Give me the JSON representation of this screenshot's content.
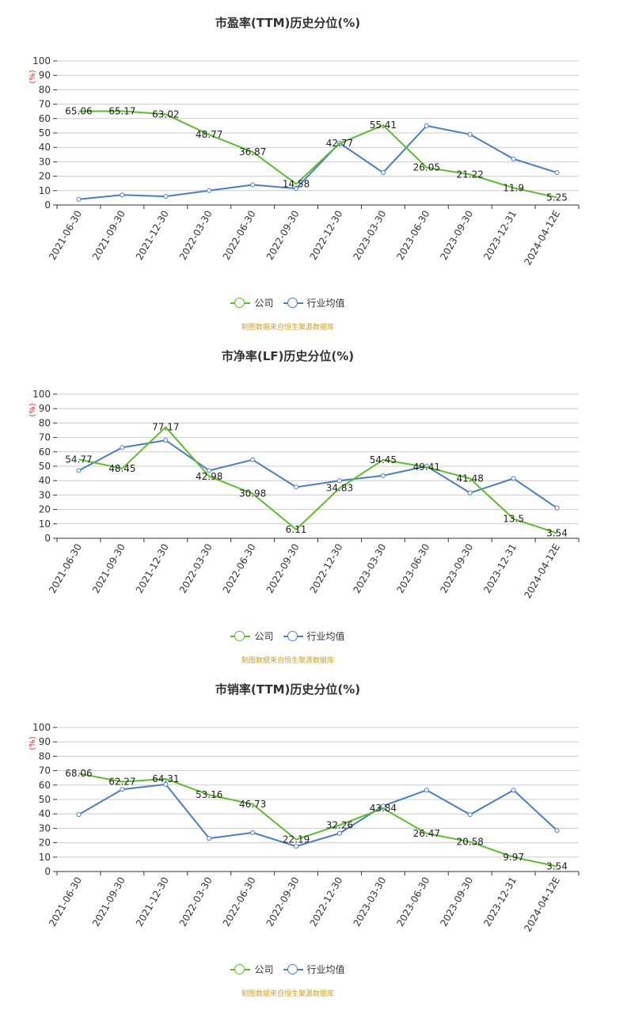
{
  "x_labels": [
    "2021-06-30",
    "2021-09-30",
    "2021-12-30",
    "2022-03-30",
    "2022-06-30",
    "2022-09-30",
    "2022-12-30",
    "2023-03-30",
    "2023-06-30",
    "2023-09-30",
    "2023-12-31",
    "2024-04-12E"
  ],
  "y_ticks": [
    0,
    10,
    20,
    30,
    40,
    50,
    60,
    70,
    80,
    90,
    100
  ],
  "unit_label": "(%)",
  "legend": {
    "company": "公司",
    "industry": "行业均值"
  },
  "source": "制图数据来自恒生聚源数据库",
  "colors": {
    "company": "#5dbd2d",
    "industry": "#4a7ec4",
    "grid": "#cccccc",
    "axis": "#333333",
    "unit": "#d9262c",
    "source": "#c9a227"
  },
  "chart_data": [
    {
      "type": "line",
      "title": "市盈率(TTM)历史分位(%)",
      "ylim": [
        0,
        100
      ],
      "series": [
        {
          "name": "公司",
          "values": [
            65.06,
            65.17,
            63.02,
            48.77,
            36.87,
            14.58,
            42.77,
            55.41,
            26.05,
            21.22,
            11.9,
            5.25
          ],
          "labels": [
            "65.06",
            "65.17",
            "63.02",
            "48.77",
            "36.87",
            "14.58",
            "42.77",
            "55.41",
            "26.05",
            "21.22",
            "11.9",
            "5.25"
          ]
        },
        {
          "name": "行业均值",
          "values": [
            4,
            7,
            6,
            10,
            14,
            11.5,
            43,
            22.5,
            55,
            49,
            32,
            22.5
          ]
        }
      ]
    },
    {
      "type": "line",
      "title": "市净率(LF)历史分位(%)",
      "ylim": [
        0,
        100
      ],
      "series": [
        {
          "name": "公司",
          "values": [
            54.77,
            48.45,
            77.17,
            42.98,
            30.98,
            6.11,
            34.83,
            54.45,
            49.41,
            41.48,
            13.5,
            3.54
          ],
          "labels": [
            "54.77",
            "48.45",
            "77.17",
            "42.98",
            "30.98",
            "6.11",
            "34.83",
            "54.45",
            "49.41",
            "41.48",
            "13.5",
            "3.54"
          ]
        },
        {
          "name": "行业均值",
          "values": [
            47,
            63,
            68,
            47,
            54.5,
            35.5,
            40,
            43.5,
            50,
            31.5,
            41.5,
            21
          ]
        }
      ]
    },
    {
      "type": "line",
      "title": "市销率(TTM)历史分位(%)",
      "ylim": [
        0,
        100
      ],
      "series": [
        {
          "name": "公司",
          "values": [
            68.06,
            62.27,
            64.31,
            53.16,
            46.73,
            22.19,
            32.26,
            43.84,
            26.47,
            20.58,
            9.97,
            3.54
          ],
          "labels": [
            "68.06",
            "62.27",
            "64.31",
            "53.16",
            "46.73",
            "22.19",
            "32.26",
            "43.84",
            "26.47",
            "20.58",
            "9.97",
            "3.54"
          ]
        },
        {
          "name": "行业均值",
          "values": [
            39.5,
            57,
            60.5,
            23,
            27,
            17.5,
            26.5,
            45.5,
            56.5,
            39.5,
            56.5,
            28.5
          ]
        }
      ]
    }
  ]
}
